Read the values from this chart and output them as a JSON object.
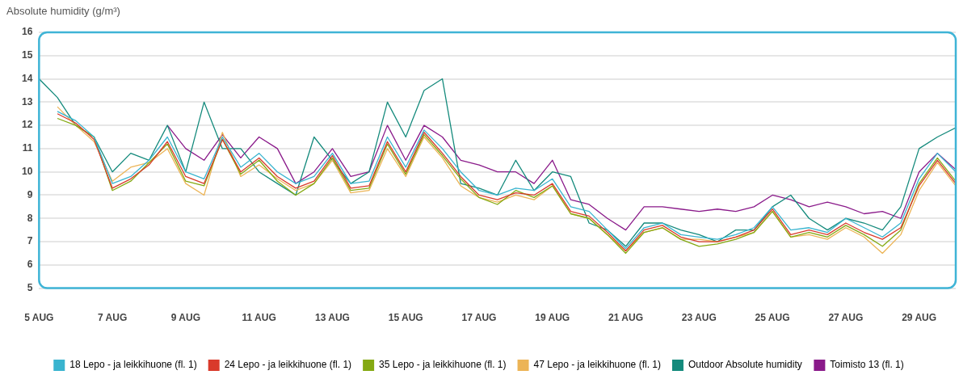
{
  "chart_data": {
    "type": "line",
    "ylabel": "Absolute humidity (g/m³)",
    "ylim": [
      5,
      16
    ],
    "yticks": [
      5,
      6,
      7,
      8,
      9,
      10,
      11,
      12,
      13,
      14,
      15,
      16
    ],
    "xlim": [
      "--08-05",
      "--08-30"
    ],
    "xticks": [
      {
        "value": "--08-05",
        "label": "5 AUG"
      },
      {
        "value": "--08-07",
        "label": "7 AUG"
      },
      {
        "value": "--08-09",
        "label": "9 AUG"
      },
      {
        "value": "--08-11",
        "label": "11 AUG"
      },
      {
        "value": "--08-13",
        "label": "13 AUG"
      },
      {
        "value": "--08-15",
        "label": "15 AUG"
      },
      {
        "value": "--08-17",
        "label": "17 AUG"
      },
      {
        "value": "--08-19",
        "label": "19 AUG"
      },
      {
        "value": "--08-21",
        "label": "21 AUG"
      },
      {
        "value": "--08-23",
        "label": "23 AUG"
      },
      {
        "value": "--08-25",
        "label": "25 AUG"
      },
      {
        "value": "--08-27",
        "label": "27 AUG"
      },
      {
        "value": "--08-29",
        "label": "29 AUG"
      }
    ],
    "x": [
      "--08-05T00:00",
      "--08-05T12:00",
      "--08-06T00:00",
      "--08-06T12:00",
      "--08-07T00:00",
      "--08-07T12:00",
      "--08-08T00:00",
      "--08-08T12:00",
      "--08-09T00:00",
      "--08-09T12:00",
      "--08-10T00:00",
      "--08-10T12:00",
      "--08-11T00:00",
      "--08-11T12:00",
      "--08-12T00:00",
      "--08-12T12:00",
      "--08-13T00:00",
      "--08-13T12:00",
      "--08-14T00:00",
      "--08-14T12:00",
      "--08-15T00:00",
      "--08-15T12:00",
      "--08-16T00:00",
      "--08-16T12:00",
      "--08-17T00:00",
      "--08-17T12:00",
      "--08-18T00:00",
      "--08-18T12:00",
      "--08-19T00:00",
      "--08-19T12:00",
      "--08-20T00:00",
      "--08-20T12:00",
      "--08-21T00:00",
      "--08-21T12:00",
      "--08-22T00:00",
      "--08-22T12:00",
      "--08-23T00:00",
      "--08-23T12:00",
      "--08-24T00:00",
      "--08-24T12:00",
      "--08-25T00:00",
      "--08-25T12:00",
      "--08-26T00:00",
      "--08-26T12:00",
      "--08-27T00:00",
      "--08-27T12:00",
      "--08-28T00:00",
      "--08-28T12:00",
      "--08-29T00:00",
      "--08-29T12:00",
      "--08-30T00:00"
    ],
    "series": [
      {
        "name": "18 Lepo - ja leikkihuone (fl. 1)",
        "color": "#39b4cf",
        "values": [
          null,
          12.6,
          12.2,
          11.5,
          9.5,
          9.8,
          10.5,
          11.5,
          10.0,
          9.7,
          11.5,
          10.2,
          10.8,
          10.0,
          9.5,
          9.8,
          10.8,
          9.5,
          9.6,
          11.5,
          10.2,
          11.8,
          11.0,
          10.0,
          9.2,
          9.0,
          9.3,
          9.2,
          9.7,
          8.5,
          8.3,
          7.5,
          6.7,
          7.6,
          7.8,
          7.3,
          7.2,
          7.1,
          7.3,
          7.6,
          8.5,
          7.5,
          7.6,
          7.4,
          8.0,
          7.6,
          7.2,
          7.8,
          9.7,
          10.8,
          10.0
        ]
      },
      {
        "name": "24 Lepo - ja leikkihuone (fl. 1)",
        "color": "#d93a2b",
        "values": [
          null,
          12.5,
          12.1,
          11.4,
          9.3,
          9.7,
          10.3,
          11.3,
          9.8,
          9.5,
          11.4,
          10.0,
          10.6,
          9.8,
          9.3,
          9.6,
          10.7,
          9.3,
          9.4,
          11.3,
          10.0,
          11.7,
          10.8,
          9.8,
          9.0,
          8.8,
          9.1,
          9.0,
          9.5,
          8.3,
          8.1,
          7.4,
          6.6,
          7.5,
          7.7,
          7.2,
          7.0,
          7.0,
          7.2,
          7.5,
          8.4,
          7.3,
          7.5,
          7.3,
          7.8,
          7.4,
          7.1,
          7.6,
          9.4,
          10.5,
          9.5
        ]
      },
      {
        "name": "35 Lepo - ja leikkihuone (fl. 1)",
        "color": "#84a912",
        "values": [
          null,
          12.3,
          12.0,
          11.5,
          9.2,
          9.6,
          10.4,
          11.2,
          9.6,
          9.4,
          11.4,
          9.9,
          10.5,
          9.6,
          9.0,
          9.5,
          10.6,
          9.2,
          9.3,
          11.2,
          9.9,
          11.6,
          10.7,
          9.7,
          8.9,
          8.6,
          9.2,
          8.9,
          9.4,
          8.2,
          8.0,
          7.3,
          6.5,
          7.4,
          7.6,
          7.1,
          6.8,
          6.9,
          7.1,
          7.4,
          8.3,
          7.2,
          7.4,
          7.2,
          7.7,
          7.3,
          6.8,
          7.5,
          9.5,
          10.6,
          9.6
        ]
      },
      {
        "name": "47 Lepo - ja leikkihuone (fl. 1)",
        "color": "#ecb456",
        "values": [
          null,
          12.8,
          12.0,
          11.3,
          9.6,
          10.2,
          10.4,
          11.0,
          9.5,
          9.0,
          11.7,
          9.8,
          10.3,
          9.7,
          9.2,
          9.5,
          10.5,
          9.1,
          9.2,
          11.0,
          9.8,
          11.5,
          10.6,
          9.4,
          8.9,
          8.7,
          9.0,
          8.8,
          9.4,
          8.2,
          8.0,
          7.3,
          6.6,
          7.4,
          7.6,
          7.1,
          7.1,
          7.0,
          7.2,
          7.4,
          8.3,
          7.2,
          7.3,
          7.1,
          7.6,
          7.2,
          6.5,
          7.3,
          9.2,
          10.4,
          9.4
        ]
      },
      {
        "name": "Outdoor Absolute humidity",
        "color": "#148a7c",
        "values": [
          14.0,
          13.2,
          12.0,
          11.5,
          10.0,
          10.8,
          10.5,
          12.0,
          10.0,
          13.0,
          11.0,
          11.0,
          10.0,
          9.5,
          9.0,
          11.5,
          10.5,
          9.5,
          10.0,
          13.0,
          11.5,
          13.5,
          14.0,
          9.5,
          9.3,
          9.0,
          10.5,
          9.2,
          10.0,
          9.8,
          7.8,
          7.5,
          6.8,
          7.8,
          7.8,
          7.5,
          7.3,
          7.0,
          7.5,
          7.5,
          8.5,
          9.0,
          8.0,
          7.5,
          8.0,
          7.8,
          7.5,
          8.5,
          11.0,
          11.5,
          11.9
        ]
      },
      {
        "name": "Toimisto 13 (fl. 1)",
        "color": "#8a1a8a",
        "values": [
          null,
          null,
          null,
          null,
          null,
          null,
          null,
          12.0,
          11.0,
          10.5,
          11.6,
          10.6,
          11.5,
          11.0,
          9.5,
          10.0,
          11.0,
          9.8,
          10.0,
          12.0,
          10.5,
          12.0,
          11.5,
          10.5,
          10.3,
          10.0,
          10.0,
          9.5,
          10.5,
          8.8,
          8.6,
          8.0,
          7.5,
          8.5,
          8.5,
          8.4,
          8.3,
          8.4,
          8.3,
          8.5,
          9.0,
          8.8,
          8.5,
          8.7,
          8.5,
          8.2,
          8.3,
          8.0,
          10.0,
          10.8,
          10.1
        ]
      }
    ],
    "grid": "y",
    "legend": "bottom",
    "marker": "none",
    "line_style": "solid"
  }
}
